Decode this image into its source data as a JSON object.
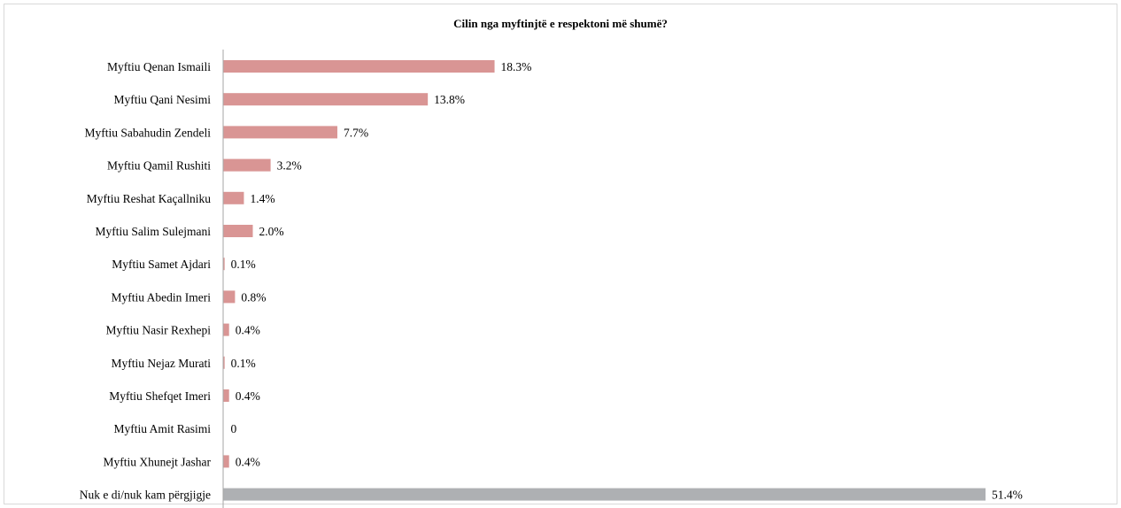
{
  "chart_data": {
    "type": "bar",
    "orientation": "horizontal",
    "title": "Cilin nga myftinjtë e respektoni më shumë?",
    "categories": [
      "Myftiu Qenan Ismaili",
      "Myftiu Qani Nesimi",
      "Myftiu Sabahudin Zendeli",
      "Myftiu Qamil Rushiti",
      "Myftiu Reshat Kaçallniku",
      "Myftiu Salim Sulejmani",
      "Myftiu Samet Ajdari",
      "Myftiu Abedin Imeri",
      "Myftiu Nasir Rexhepi",
      "Myftiu Nejaz Murati",
      "Myftiu Shefqet Imeri",
      "Myftiu Amit Rasimi",
      "Myftiu Xhunejt Jashar",
      "Nuk e di/nuk kam përgjigje"
    ],
    "values": [
      18.3,
      13.8,
      7.7,
      3.2,
      1.4,
      2.0,
      0.1,
      0.8,
      0.4,
      0.1,
      0.4,
      0,
      0.4,
      51.4
    ],
    "data_labels": [
      "18.3%",
      "13.8%",
      "7.7%",
      "3.2%",
      "1.4%",
      "2.0%",
      "0.1%",
      "0.8%",
      "0.4%",
      "0.1%",
      "0.4%",
      "0",
      "0.4%",
      "51.4%"
    ],
    "colors": {
      "bar": "#d99594",
      "last_bar": "#aeb0b3",
      "axis": "#a6a6a6"
    },
    "xlim": [
      0,
      51.4
    ],
    "grid": false,
    "legend": "none"
  }
}
